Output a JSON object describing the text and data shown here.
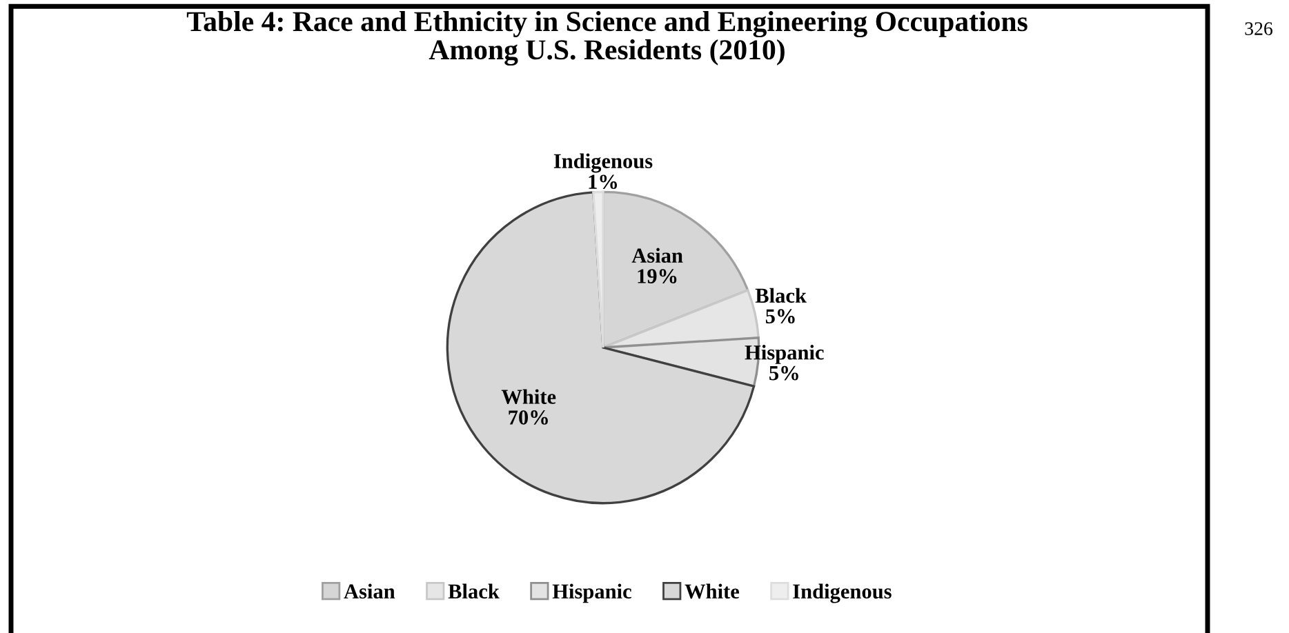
{
  "chart_data": {
    "type": "pie",
    "title": "Table 4: Race and Ethnicity in Science and Engineering Occupations\nAmong U.S. Residents (2010)",
    "categories": [
      "Asian",
      "Black",
      "Hispanic",
      "White",
      "Indigenous"
    ],
    "values": [
      19,
      5,
      5,
      70,
      1
    ],
    "colors": [
      "#d6d6d6",
      "#e6e6e6",
      "#e3e3e3",
      "#d8d8d8",
      "#eeeeee"
    ],
    "value_labels": [
      "19%",
      "5%",
      "5%",
      "70%",
      "1%"
    ],
    "legend": "bottom",
    "annotations": [
      "326"
    ]
  }
}
